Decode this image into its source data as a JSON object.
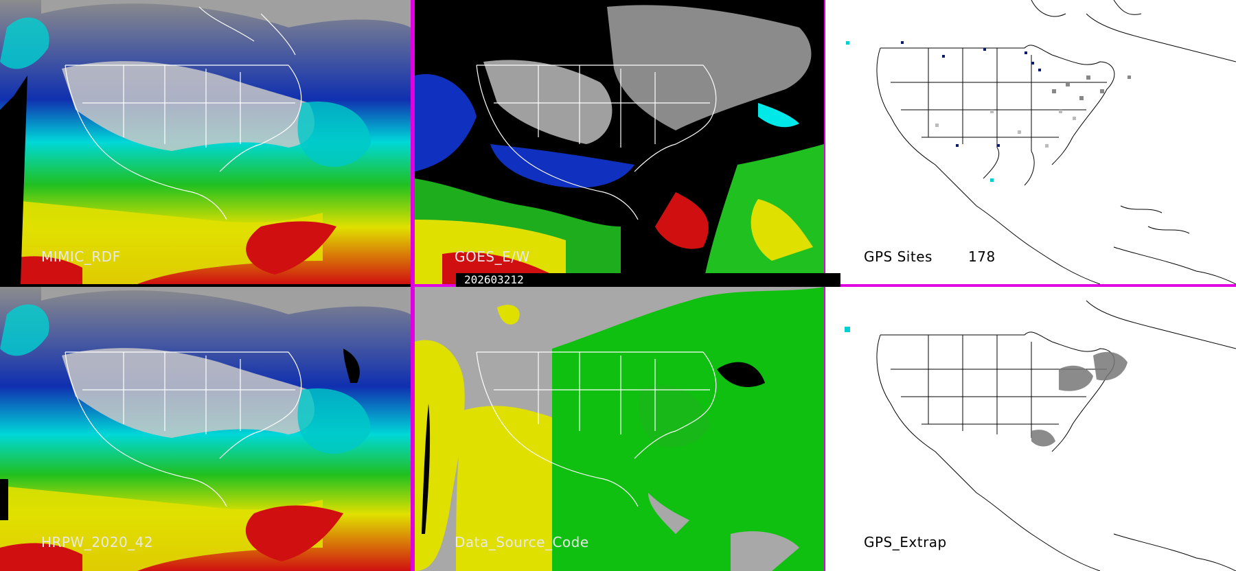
{
  "panels": {
    "mimic": {
      "label": "MIMIC_RDF"
    },
    "goes": {
      "label": "GOES_E/W"
    },
    "gps_sites": {
      "label": "GPS Sites",
      "count": "178"
    },
    "hrpw": {
      "label": "HRPW_2020_42"
    },
    "data_source": {
      "label": "Data_Source_Code"
    },
    "gps_extrap": {
      "label": "GPS_Extrap"
    }
  },
  "timestamp": "202603212",
  "colors": {
    "divider": "#e000e0",
    "map_lines_on_imagery": "#ffffff",
    "map_lines_on_white": "#000000",
    "pw_scale": [
      "#ffffff",
      "#9a9a9a",
      "#0a1a6a",
      "#1030c0",
      "#00e8e8",
      "#20c020",
      "#e0e000",
      "#d01010"
    ],
    "source_codes": [
      "#a8a8a8",
      "#e0e000",
      "#10c010",
      "#000000"
    ]
  }
}
